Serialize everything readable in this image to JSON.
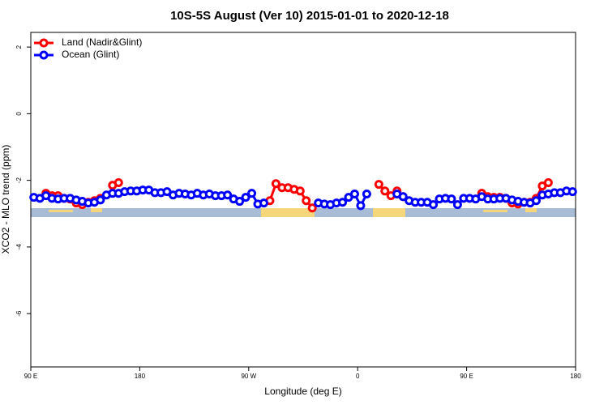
{
  "chart_data": {
    "type": "line",
    "title": "10S-5S August (Ver 10)   2015-01-01 to 2020-12-18",
    "x_label": "Longitude (deg E)",
    "y_label": "XCO2 - MLO trend (ppm)",
    "xlim": [
      90,
      540
    ],
    "ylim": [
      -7.6,
      2.44
    ],
    "xticks": [
      {
        "value": 90,
        "label": "90 E"
      },
      180,
      {
        "value": 270,
        "label": "90 W"
      },
      {
        "value": 360,
        "label": "0"
      },
      {
        "value": 450,
        "label": "90 E"
      },
      {
        "value": 540,
        "label": "180"
      }
    ],
    "yticks": [
      -6,
      -4,
      -2,
      0,
      2
    ],
    "legend": "top-left",
    "x": [
      92.5,
      97.5,
      102.5,
      107.5,
      112.5,
      117.5,
      122.5,
      127.5,
      132.5,
      137.5,
      142.5,
      147.5,
      152.5,
      157.5,
      162.5,
      167.5,
      172.5,
      177.5,
      182.5,
      187.5,
      192.5,
      197.5,
      202.5,
      207.5,
      212.5,
      217.5,
      222.5,
      227.5,
      232.5,
      237.5,
      242.5,
      247.5,
      252.5,
      257.5,
      262.5,
      267.5,
      272.5,
      277.5,
      282.5,
      287.5,
      292.5,
      297.5,
      302.5,
      307.5,
      312.5,
      317.5,
      322.5,
      327.5,
      332.5,
      337.5,
      342.5,
      347.5,
      352.5,
      357.5,
      362.5,
      367.5,
      372.5,
      377.5,
      382.5,
      387.5,
      392.5,
      397.5,
      402.5,
      407.5,
      412.5,
      417.5,
      422.5,
      427.5,
      432.5,
      437.5,
      442.5,
      447.5,
      452.5,
      457.5,
      462.5,
      467.5,
      472.5,
      477.5,
      482.5,
      487.5,
      492.5,
      497.5,
      502.5,
      507.5,
      512.5,
      517.5,
      522.5,
      527.5,
      532.5,
      537.5
    ],
    "series": [
      {
        "name": "Land (Nadir&Glint)",
        "color": "#ff0000",
        "values": [
          null,
          null,
          -2.39,
          -2.46,
          -2.46,
          -2.54,
          -2.56,
          -2.68,
          -2.73,
          -2.66,
          -2.61,
          -2.54,
          null,
          -2.15,
          -2.07,
          null,
          null,
          null,
          null,
          null,
          null,
          null,
          null,
          null,
          null,
          null,
          null,
          null,
          null,
          null,
          null,
          null,
          null,
          null,
          null,
          null,
          null,
          null,
          null,
          -2.61,
          -2.1,
          -2.22,
          -2.22,
          -2.27,
          -2.32,
          -2.61,
          -2.83,
          null,
          null,
          null,
          null,
          null,
          null,
          null,
          null,
          null,
          null,
          -2.12,
          -2.32,
          -2.46,
          -2.32,
          -2.49,
          null,
          null,
          null,
          null,
          null,
          null,
          null,
          null,
          null,
          null,
          null,
          null,
          -2.39,
          -2.49,
          -2.51,
          -2.51,
          -2.54,
          -2.68,
          -2.71,
          -2.66,
          -2.66,
          -2.54,
          -2.17,
          -2.07,
          null,
          null,
          null,
          null
        ]
      },
      {
        "name": "Ocean (Glint)",
        "color": "#0000ff",
        "values": [
          -2.51,
          -2.54,
          -2.46,
          -2.54,
          -2.56,
          -2.54,
          -2.54,
          -2.59,
          -2.63,
          -2.68,
          -2.66,
          -2.59,
          -2.44,
          -2.39,
          -2.39,
          -2.34,
          -2.32,
          -2.32,
          -2.29,
          -2.29,
          -2.37,
          -2.37,
          -2.34,
          -2.44,
          -2.39,
          -2.41,
          -2.44,
          -2.39,
          -2.44,
          -2.41,
          -2.46,
          -2.46,
          -2.44,
          -2.56,
          -2.63,
          -2.51,
          -2.39,
          -2.71,
          -2.68,
          null,
          null,
          null,
          null,
          null,
          null,
          null,
          null,
          -2.68,
          -2.71,
          -2.73,
          -2.68,
          -2.66,
          -2.51,
          -2.41,
          -2.76,
          -2.41,
          null,
          null,
          null,
          null,
          -2.41,
          -2.49,
          -2.61,
          -2.66,
          -2.66,
          -2.66,
          -2.73,
          -2.56,
          -2.54,
          -2.56,
          -2.73,
          -2.54,
          -2.54,
          -2.56,
          -2.49,
          -2.56,
          -2.56,
          -2.54,
          -2.54,
          -2.59,
          -2.63,
          -2.66,
          -2.68,
          -2.61,
          -2.44,
          -2.41,
          -2.37,
          -2.37,
          -2.32,
          -2.34
        ]
      }
    ]
  }
}
